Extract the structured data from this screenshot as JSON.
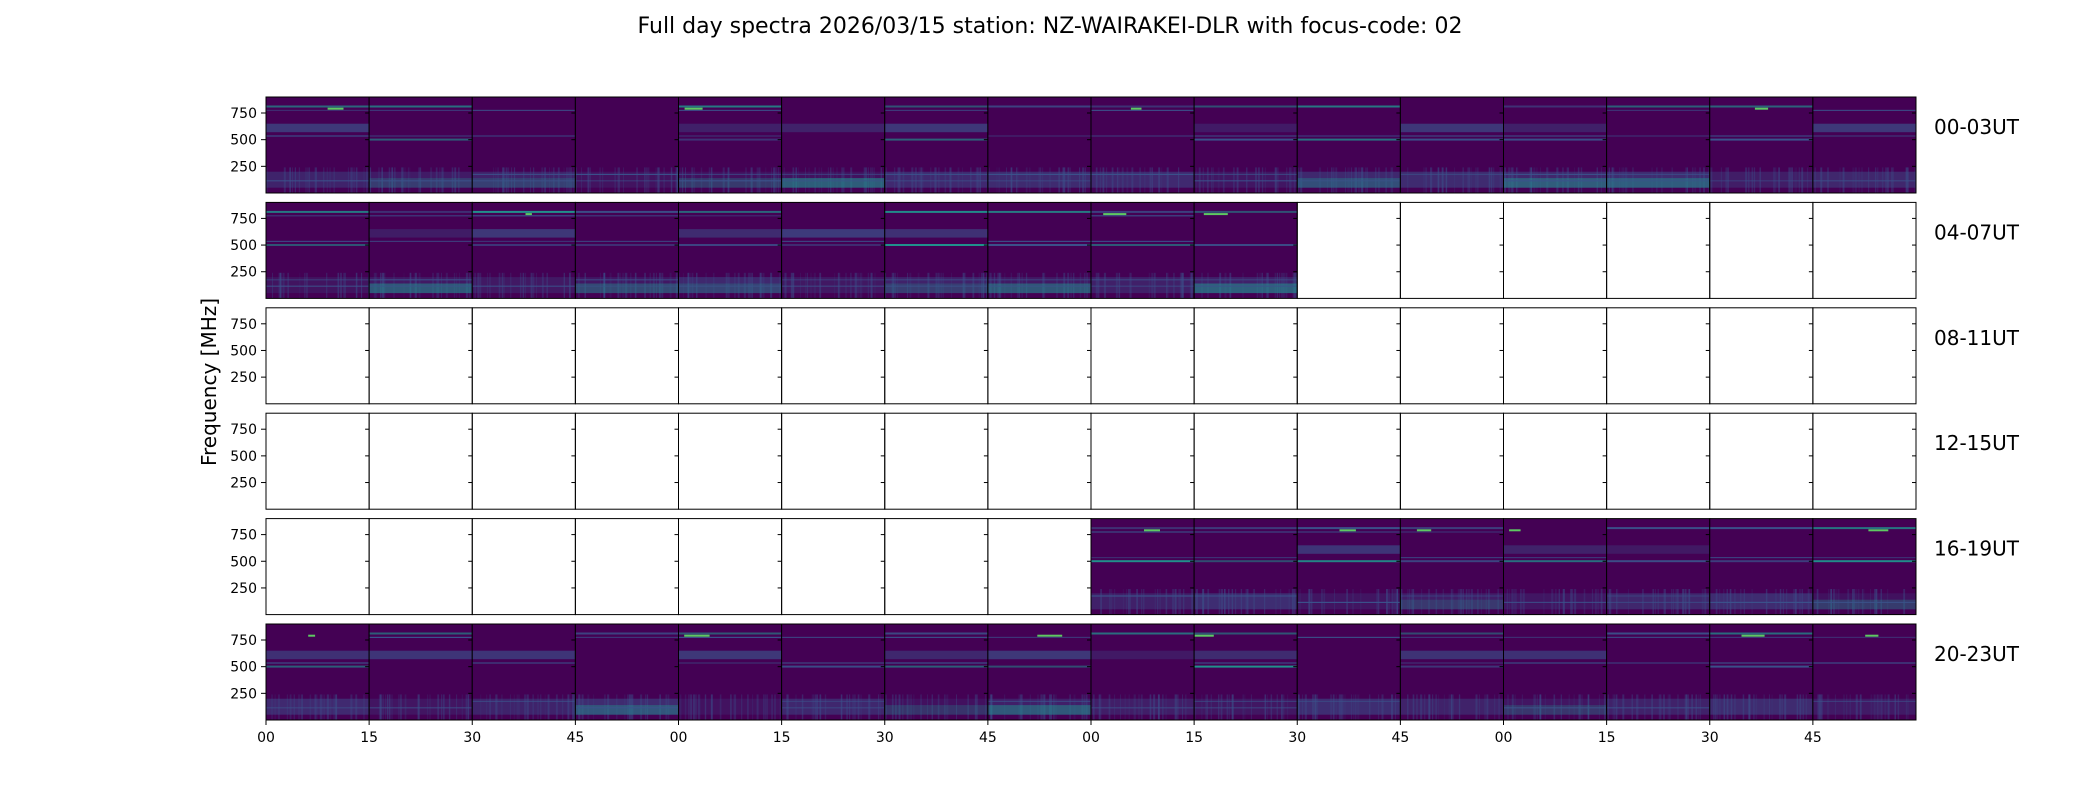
{
  "chart_data": {
    "type": "heatmap",
    "title": "Full day spectra 2026/03/15 station: NZ-WAIRAKEI-DLR with focus-code: 02",
    "ylabel": "Frequency [MHz]",
    "xlabel": "",
    "ylim": [
      0,
      900
    ],
    "yticks": [
      250,
      500,
      750
    ],
    "xtick_labels": [
      "00",
      "15",
      "30",
      "45",
      "00",
      "15",
      "30",
      "45",
      "00",
      "15",
      "30",
      "45",
      "00",
      "15",
      "30",
      "45"
    ],
    "colormap": "viridis",
    "colors": {
      "low": "#440154",
      "mid": "#3b528b",
      "teal": "#21918c",
      "high": "#5ec962",
      "frame": "#000000"
    },
    "rows": [
      {
        "label": "00-03UT",
        "data_present": [
          true,
          true,
          true,
          true,
          true,
          true,
          true,
          true,
          true,
          true,
          true,
          true,
          true,
          true,
          true,
          true
        ]
      },
      {
        "label": "04-07UT",
        "data_present": [
          true,
          true,
          true,
          true,
          true,
          true,
          true,
          true,
          true,
          true,
          false,
          false,
          false,
          false,
          false,
          false
        ]
      },
      {
        "label": "08-11UT",
        "data_present": [
          false,
          false,
          false,
          false,
          false,
          false,
          false,
          false,
          false,
          false,
          false,
          false,
          false,
          false,
          false,
          false
        ]
      },
      {
        "label": "12-15UT",
        "data_present": [
          false,
          false,
          false,
          false,
          false,
          false,
          false,
          false,
          false,
          false,
          false,
          false,
          false,
          false,
          false,
          false
        ]
      },
      {
        "label": "16-19UT",
        "data_present": [
          false,
          false,
          false,
          false,
          false,
          false,
          false,
          false,
          true,
          true,
          true,
          true,
          true,
          true,
          true,
          true
        ]
      },
      {
        "label": "20-23UT",
        "data_present": [
          true,
          true,
          true,
          true,
          true,
          true,
          true,
          true,
          true,
          true,
          true,
          true,
          true,
          true,
          true,
          true
        ]
      }
    ]
  }
}
